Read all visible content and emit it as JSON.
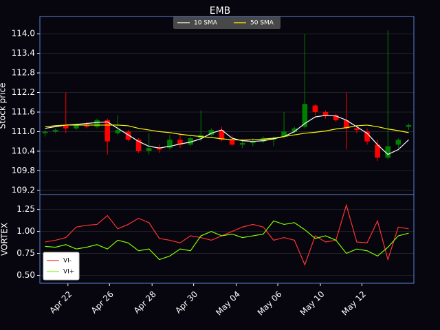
{
  "chart_data": [
    {
      "type": "candlestick",
      "title": "EMB",
      "ylabel": "Stock price",
      "open": [
        110.95,
        111.0,
        111.2,
        111.1,
        111.2,
        111.15,
        111.35,
        110.95,
        111.0,
        110.75,
        110.4,
        110.5,
        110.5,
        110.75,
        110.6,
        110.8,
        110.9,
        111.05,
        110.75,
        110.6,
        110.65,
        110.7,
        110.75,
        110.85,
        111.0,
        111.15,
        111.8,
        111.6,
        111.5,
        111.35,
        111.1,
        111.0,
        110.6,
        110.2,
        110.6,
        111.15
      ],
      "high": [
        111.05,
        111.1,
        112.2,
        111.25,
        111.3,
        111.4,
        111.4,
        111.5,
        111.05,
        110.8,
        110.95,
        110.6,
        110.9,
        110.95,
        110.85,
        111.65,
        111.1,
        111.15,
        110.9,
        110.75,
        110.8,
        110.85,
        110.85,
        111.6,
        111.15,
        114.0,
        111.85,
        111.65,
        111.55,
        112.2,
        111.2,
        111.1,
        110.75,
        114.1,
        110.8,
        111.25
      ],
      "low": [
        110.85,
        110.95,
        110.95,
        111.05,
        111.1,
        111.1,
        110.3,
        110.9,
        110.7,
        110.35,
        110.3,
        110.35,
        110.45,
        110.5,
        110.55,
        110.7,
        110.85,
        110.7,
        110.55,
        110.5,
        110.55,
        110.65,
        110.55,
        110.8,
        110.95,
        111.1,
        111.5,
        111.4,
        111.3,
        110.45,
        110.95,
        110.6,
        110.1,
        110.15,
        110.5,
        111.05
      ],
      "close": [
        111.0,
        111.05,
        111.1,
        111.2,
        111.15,
        111.35,
        110.7,
        111.05,
        110.75,
        110.4,
        110.5,
        110.45,
        110.75,
        110.6,
        110.8,
        110.9,
        111.05,
        110.75,
        110.6,
        110.65,
        110.7,
        110.8,
        110.8,
        111.0,
        111.1,
        111.85,
        111.6,
        111.5,
        111.35,
        111.1,
        111.05,
        110.7,
        110.2,
        110.55,
        110.75,
        111.2
      ],
      "up_color": "#008000",
      "down_color": "#ff0000",
      "series": [
        {
          "name": "10 SMA",
          "color": "#ffffff",
          "values": [
            111.1,
            111.15,
            111.2,
            111.22,
            111.25,
            111.28,
            111.3,
            111.1,
            110.9,
            110.7,
            110.55,
            110.5,
            110.55,
            110.62,
            110.68,
            110.78,
            110.95,
            111.05,
            110.8,
            110.72,
            110.7,
            110.72,
            110.78,
            110.85,
            111.0,
            111.25,
            111.45,
            111.5,
            111.48,
            111.35,
            111.15,
            110.95,
            110.6,
            110.3,
            110.45,
            110.75
          ]
        },
        {
          "name": "50 SMA",
          "color": "#ffff00",
          "values": [
            111.15,
            111.18,
            111.2,
            111.2,
            111.2,
            111.2,
            111.2,
            111.2,
            111.18,
            111.1,
            111.05,
            111.0,
            110.97,
            110.92,
            110.88,
            110.85,
            110.82,
            110.78,
            110.75,
            110.74,
            110.75,
            110.77,
            110.8,
            110.85,
            110.9,
            110.95,
            110.98,
            111.02,
            111.08,
            111.12,
            111.18,
            111.2,
            111.15,
            111.08,
            111.03,
            110.97
          ]
        }
      ],
      "xlim": [
        -0.5,
        35.5
      ],
      "ylim": [
        109.07,
        114.53
      ],
      "yticks": [
        {
          "value": 109.2,
          "label": "109.2"
        },
        109.8,
        110.4,
        {
          "value": 111.0,
          "label": "111.0"
        },
        111.6,
        112.2,
        112.8,
        113.4,
        {
          "value": 114.0,
          "label": "114.0"
        }
      ],
      "grid": true,
      "legend": "upper center"
    },
    {
      "type": "line",
      "ylabel": "VORTEX",
      "series": [
        {
          "name": "VI-",
          "color": "#ff3333",
          "values": [
            0.88,
            0.9,
            0.93,
            1.05,
            1.07,
            1.08,
            1.18,
            1.03,
            1.08,
            1.15,
            1.1,
            0.92,
            0.9,
            0.87,
            0.95,
            0.93,
            0.9,
            0.95,
            1.0,
            1.05,
            1.08,
            1.05,
            0.9,
            0.93,
            0.9,
            0.62,
            0.95,
            0.88,
            0.9,
            1.3,
            0.88,
            0.87,
            1.12,
            0.68,
            1.05,
            1.03
          ]
        },
        {
          "name": "VI+",
          "color": "#7fff00",
          "values": [
            0.83,
            0.82,
            0.85,
            0.8,
            0.82,
            0.85,
            0.8,
            0.9,
            0.87,
            0.78,
            0.8,
            0.68,
            0.72,
            0.8,
            0.78,
            0.95,
            1.0,
            0.95,
            0.97,
            0.93,
            0.95,
            0.97,
            1.12,
            1.08,
            1.1,
            1.02,
            0.92,
            0.95,
            0.9,
            0.75,
            0.8,
            0.78,
            0.72,
            0.82,
            0.95,
            0.98
          ]
        }
      ],
      "xlim": [
        -0.5,
        35.5
      ],
      "ylim": [
        0.41,
        1.42
      ],
      "xticks": [
        {
          "value": 2.2,
          "label": "Apr 22"
        },
        {
          "value": 6.2,
          "label": "Apr 26"
        },
        {
          "value": 10.3,
          "label": "Apr 28"
        },
        {
          "value": 14.3,
          "label": "Apr 30"
        },
        {
          "value": 18.4,
          "label": "May 04"
        },
        {
          "value": 22.4,
          "label": "May 06"
        },
        {
          "value": 26.5,
          "label": "May 10"
        },
        {
          "value": 30.5,
          "label": "May 12"
        }
      ],
      "yticks": [
        {
          "value": 0.5,
          "label": "0.50"
        },
        0.75,
        {
          "value": 1.0,
          "label": "1.00"
        },
        1.25
      ],
      "grid": true,
      "legend": "lower left"
    }
  ]
}
